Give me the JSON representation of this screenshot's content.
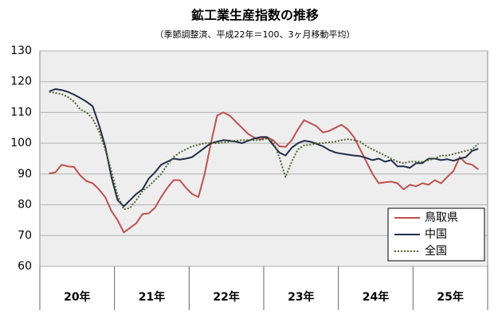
{
  "chart_data": {
    "type": "line",
    "title": "鉱工業生産指数の推移",
    "subtitle": "（季節調整済、平成22年＝100、3ヶ月移動平均）",
    "categories": [
      "20年",
      null,
      null,
      null,
      null,
      null,
      null,
      null,
      null,
      null,
      null,
      null,
      "21年",
      null,
      null,
      null,
      null,
      null,
      null,
      null,
      null,
      null,
      null,
      null,
      "22年",
      null,
      null,
      null,
      null,
      null,
      null,
      null,
      null,
      null,
      null,
      null,
      "23年",
      null,
      null,
      null,
      null,
      null,
      null,
      null,
      null,
      null,
      null,
      null,
      "24年",
      null,
      null,
      null,
      null,
      null,
      null,
      null,
      null,
      null,
      null,
      null,
      "25年",
      null,
      null,
      null,
      null,
      null,
      null,
      null,
      null,
      null,
      null,
      null
    ],
    "series": [
      {
        "name": "鳥取県",
        "color": "#c0504d",
        "dash": false,
        "values": [
          null,
          90.2,
          90.5,
          93,
          92.5,
          92.3,
          89.5,
          87.7,
          87,
          85,
          82.5,
          78,
          75,
          71,
          72.5,
          74,
          77,
          77.2,
          79,
          82.5,
          85.5,
          88,
          88,
          85.5,
          83.5,
          82.5,
          90,
          100,
          109,
          110,
          109,
          107,
          105,
          103,
          101.8,
          101.3,
          102,
          101,
          99,
          98.8,
          101,
          104.5,
          107.5,
          106.5,
          105.5,
          103.5,
          104,
          105,
          106,
          104.5,
          102,
          98,
          94,
          90,
          87,
          87.3,
          87.5,
          87,
          85,
          86.5,
          86,
          87,
          86.5,
          88,
          87,
          89,
          91,
          95.5,
          93.5,
          93,
          91.5,
          null
        ]
      },
      {
        "name": "中国",
        "color": "#1f2d4a",
        "dash": false,
        "values": [
          null,
          116.8,
          117.6,
          117.3,
          116.7,
          115.8,
          114.7,
          113.5,
          112,
          106,
          99,
          89,
          81.5,
          79.5,
          81.5,
          83.5,
          85,
          88.5,
          90.5,
          93,
          94,
          95,
          94.7,
          95,
          95.5,
          97,
          98.5,
          100,
          100.5,
          101,
          100.8,
          100.5,
          100,
          100.8,
          101.5,
          102,
          102,
          99.5,
          97,
          96,
          98.5,
          100,
          100.8,
          100.5,
          99.8,
          99,
          97.8,
          97,
          96.6,
          96.3,
          96,
          95.8,
          95.2,
          94.5,
          95,
          94,
          94.5,
          92.5,
          92.5,
          92,
          93.5,
          93.5,
          95,
          95,
          94.5,
          94.8,
          94.3,
          95,
          95.5,
          97.5,
          98.2,
          null
        ]
      },
      {
        "name": "全国",
        "color": "#4f6228",
        "dash": true,
        "values": [
          null,
          116.7,
          116.3,
          116,
          115,
          113.5,
          111,
          110,
          108,
          104,
          98,
          91,
          83,
          78.5,
          79,
          81.5,
          84.5,
          86,
          88,
          90,
          93,
          95.5,
          97,
          98,
          99,
          99.5,
          100,
          100,
          100,
          100.2,
          100.5,
          100.8,
          101,
          101,
          101,
          101,
          101.5,
          100.5,
          95.5,
          89,
          94,
          98,
          99.3,
          99.5,
          100,
          100,
          100.3,
          100.5,
          101,
          101.3,
          101,
          100.5,
          99,
          98,
          97,
          96,
          95,
          94,
          93.5,
          94,
          94,
          94,
          94.5,
          95,
          96,
          96,
          96.5,
          97,
          97.5,
          98,
          99.8,
          null
        ]
      }
    ],
    "ylim": [
      60,
      130
    ],
    "yticks": [
      60,
      70,
      80,
      90,
      100,
      110,
      120,
      130
    ],
    "grid": true,
    "legend": "lower right"
  }
}
